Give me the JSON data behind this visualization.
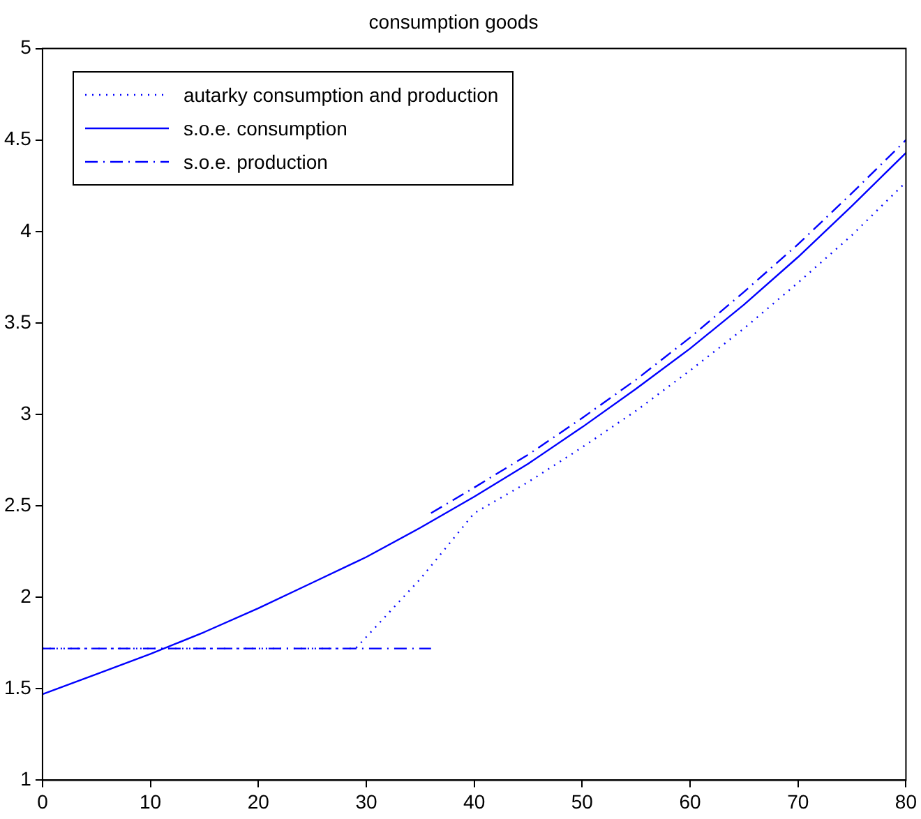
{
  "chart_data": {
    "type": "line",
    "title": "consumption goods",
    "xlim": [
      0,
      80
    ],
    "xticks": [
      0,
      10,
      20,
      30,
      40,
      50,
      60,
      70,
      80
    ],
    "ylim": [
      1,
      5
    ],
    "yticks": [
      1,
      1.5,
      2,
      2.5,
      3,
      3.5,
      4,
      4.5,
      5
    ],
    "grid": false,
    "legend": "top left",
    "marker": "none",
    "series": [
      {
        "name": "autarky consumption and production",
        "color": "#0000ff",
        "line_style": "dotted",
        "x": [
          0,
          10,
          20,
          29,
          35,
          40,
          45,
          50,
          55,
          60,
          65,
          70,
          75,
          80
        ],
        "values": [
          1.72,
          1.72,
          1.72,
          1.72,
          2.1,
          2.46,
          2.63,
          2.82,
          3.02,
          3.24,
          3.47,
          3.72,
          3.98,
          4.27
        ]
      },
      {
        "name": "s.o.e. consumption",
        "color": "#0000ff",
        "line_style": "solid",
        "x": [
          0,
          5,
          10,
          15,
          20,
          25,
          30,
          35,
          40,
          45,
          50,
          55,
          60,
          65,
          70,
          75,
          80
        ],
        "values": [
          1.47,
          1.58,
          1.69,
          1.81,
          1.94,
          2.08,
          2.22,
          2.38,
          2.55,
          2.73,
          2.93,
          3.14,
          3.36,
          3.6,
          3.86,
          4.14,
          4.43
        ]
      },
      {
        "name": "s.o.e. production",
        "color": "#0000ff",
        "line_style": "dashdot",
        "x": [
          36,
          40,
          45,
          50,
          55,
          60,
          65,
          70,
          75,
          80
        ],
        "values": [
          2.46,
          2.6,
          2.78,
          2.98,
          3.19,
          3.42,
          3.67,
          3.93,
          4.21,
          4.5
        ]
      },
      {
        "color": "#0000ff",
        "line_style": "dashdot",
        "x": [
          0,
          36
        ],
        "values": [
          1.72,
          1.72
        ]
      }
    ]
  }
}
